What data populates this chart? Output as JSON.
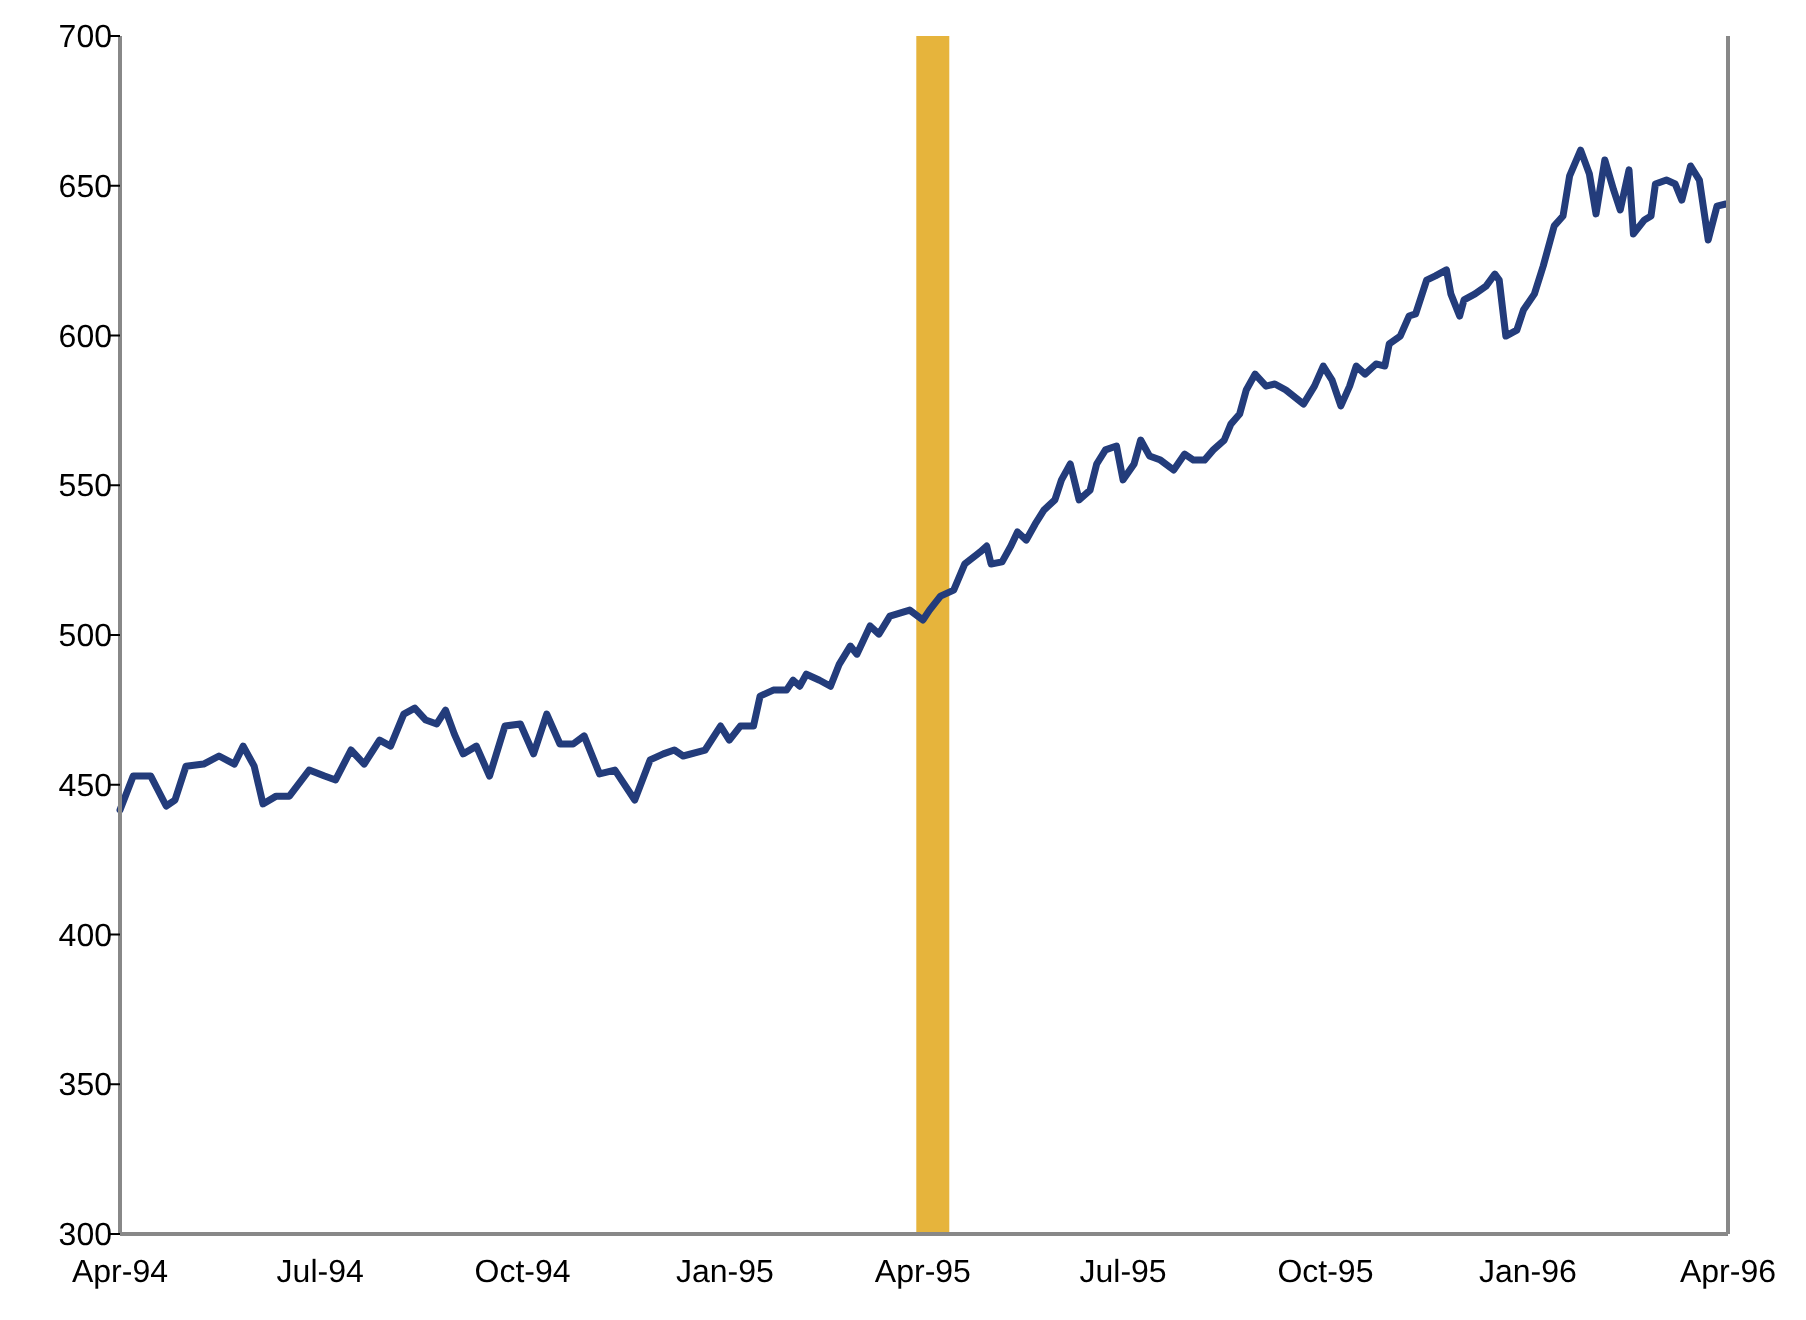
{
  "chart_data": {
    "type": "line",
    "x": [
      "1994-04-01",
      "1994-04-07",
      "1994-04-15",
      "1994-04-22",
      "1994-04-26",
      "1994-05-01",
      "1994-05-09",
      "1994-05-16",
      "1994-05-23",
      "1994-05-27",
      "1994-06-01",
      "1994-06-05",
      "1994-06-11",
      "1994-06-17",
      "1994-06-26",
      "1994-07-03",
      "1994-07-08",
      "1994-07-15",
      "1994-07-21",
      "1994-07-28",
      "1994-08-02",
      "1994-08-08",
      "1994-08-13",
      "1994-08-18",
      "1994-08-23",
      "1994-08-27",
      "1994-08-31",
      "1994-09-04",
      "1994-09-10",
      "1994-09-16",
      "1994-09-23",
      "1994-09-30",
      "1994-10-06",
      "1994-10-12",
      "1994-10-18",
      "1994-10-24",
      "1994-10-29",
      "1994-11-05",
      "1994-11-12",
      "1994-11-21",
      "1994-11-28",
      "1994-12-04",
      "1994-12-09",
      "1994-12-13",
      "1994-12-23",
      "1994-12-30",
      "1995-01-03",
      "1995-01-08",
      "1995-01-14",
      "1995-01-17",
      "1995-01-23",
      "1995-01-29",
      "1995-02-01",
      "1995-02-04",
      "1995-02-07",
      "1995-02-13",
      "1995-02-18",
      "1995-02-22",
      "1995-02-27",
      "1995-03-02",
      "1995-03-08",
      "1995-03-12",
      "1995-03-17",
      "1995-03-26",
      "1995-04-01",
      "1995-04-04",
      "1995-04-09",
      "1995-04-15",
      "1995-04-20",
      "1995-04-27",
      "1995-04-30",
      "1995-05-02",
      "1995-05-07",
      "1995-05-11",
      "1995-05-14",
      "1995-05-18",
      "1995-05-22",
      "1995-05-26",
      "1995-05-31",
      "1995-06-03",
      "1995-06-07",
      "1995-06-11",
      "1995-06-16",
      "1995-06-19",
      "1995-06-23",
      "1995-06-28",
      "1995-07-01",
      "1995-07-06",
      "1995-07-09",
      "1995-07-13",
      "1995-07-18",
      "1995-07-24",
      "1995-07-29",
      "1995-08-02",
      "1995-08-07",
      "1995-08-11",
      "1995-08-16",
      "1995-08-19",
      "1995-08-23",
      "1995-08-26",
      "1995-08-30",
      "1995-09-04",
      "1995-09-08",
      "1995-09-13",
      "1995-09-21",
      "1995-09-26",
      "1995-09-30",
      "1995-10-04",
      "1995-10-08",
      "1995-10-12",
      "1995-10-15",
      "1995-10-19",
      "1995-10-24",
      "1995-10-28",
      "1995-10-30",
      "1995-11-04",
      "1995-11-08",
      "1995-11-11",
      "1995-11-16",
      "1995-11-20",
      "1995-11-25",
      "1995-11-27",
      "1995-12-01",
      "1995-12-03",
      "1995-12-08",
      "1995-12-13",
      "1995-12-17",
      "1995-12-19",
      "1995-12-22",
      "1995-12-27",
      "1995-12-30",
      "1996-01-04",
      "1996-01-08",
      "1996-01-13",
      "1996-01-17",
      "1996-01-20",
      "1996-01-25",
      "1996-01-29",
      "1996-02-01",
      "1996-02-05",
      "1996-02-09",
      "1996-02-12",
      "1996-02-16",
      "1996-02-18",
      "1996-02-23",
      "1996-02-26",
      "1996-02-28",
      "1996-03-04",
      "1996-03-08",
      "1996-03-11",
      "1996-03-15",
      "1996-03-19",
      "1996-03-23",
      "1996-03-27",
      "1996-03-31"
    ],
    "series": [
      {
        "color": "#233c7b",
        "values": [
          441.6,
          452.9,
          452.9,
          442.9,
          444.9,
          456.2,
          456.9,
          459.6,
          456.9,
          462.9,
          456.2,
          443.6,
          446.2,
          446.2,
          454.9,
          452.9,
          451.6,
          461.6,
          456.9,
          464.9,
          462.9,
          473.6,
          475.6,
          471.6,
          470.3,
          474.9,
          466.9,
          460.3,
          462.9,
          452.9,
          469.6,
          470.3,
          460.3,
          473.6,
          463.6,
          463.6,
          466.3,
          453.6,
          454.9,
          444.9,
          458.3,
          460.3,
          461.6,
          459.6,
          461.6,
          469.6,
          464.9,
          469.6,
          469.6,
          479.6,
          481.6,
          481.6,
          484.9,
          482.9,
          486.9,
          484.9,
          482.9,
          490.3,
          496.3,
          493.6,
          503.0,
          500.3,
          506.3,
          508.3,
          505.0,
          508.3,
          513.0,
          515.0,
          523.7,
          527.7,
          529.7,
          523.7,
          524.4,
          529.7,
          534.4,
          531.7,
          537.0,
          541.7,
          545.1,
          551.8,
          557.1,
          545.1,
          548.4,
          557.1,
          561.8,
          563.1,
          551.8,
          557.1,
          565.1,
          559.8,
          558.4,
          555.1,
          560.4,
          558.4,
          558.4,
          561.8,
          565.1,
          570.4,
          573.8,
          581.8,
          587.1,
          583.1,
          583.8,
          581.8,
          577.1,
          583.1,
          589.8,
          585.1,
          576.5,
          583.1,
          589.8,
          587.1,
          590.5,
          589.8,
          597.2,
          599.8,
          606.5,
          607.2,
          618.5,
          619.9,
          621.9,
          613.9,
          606.5,
          611.9,
          613.9,
          616.5,
          620.5,
          618.5,
          599.8,
          601.8,
          608.5,
          613.9,
          623.2,
          636.6,
          639.9,
          653.3,
          661.9,
          653.9,
          640.6,
          658.6,
          648.6,
          641.9,
          655.3,
          633.9,
          638.6,
          639.9,
          650.6,
          651.9,
          650.6,
          645.2,
          656.6,
          651.9,
          631.9,
          643.2,
          643.9
        ]
      }
    ],
    "xlim": [
      "1994-04-01",
      "1996-04-01"
    ],
    "xticks": [
      {
        "value": "1994-04-01",
        "label": "Apr-94"
      },
      {
        "value": "1994-07-01",
        "label": "Jul-94"
      },
      {
        "value": "1994-10-01",
        "label": "Oct-94"
      },
      {
        "value": "1995-01-01",
        "label": "Jan-95"
      },
      {
        "value": "1995-04-01",
        "label": "Apr-95"
      },
      {
        "value": "1995-07-01",
        "label": "Jul-95"
      },
      {
        "value": "1995-10-01",
        "label": "Oct-95"
      },
      {
        "value": "1996-01-01",
        "label": "Jan-96"
      },
      {
        "value": "1996-04-01",
        "label": "Apr-96"
      }
    ],
    "ylim": [
      300,
      700
    ],
    "yticks": [
      300,
      350,
      400,
      450,
      500,
      550,
      600,
      650,
      700
    ],
    "bands": [
      {
        "axis": "x",
        "from": "1995-03-29",
        "to": "1995-04-13",
        "color": "#e6b43c"
      }
    ],
    "grid": false,
    "line_style": "solid",
    "marker": "none"
  }
}
